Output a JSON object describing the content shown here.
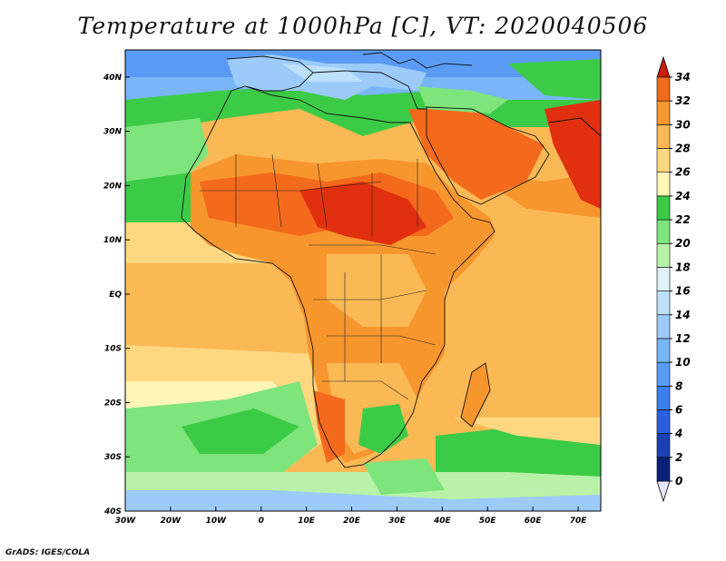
{
  "title": "Temperature at 1000hPa [C], VT: 2020040506",
  "footer": "GrADS: IGES/COLA",
  "map": {
    "lon_range": [
      -30,
      75
    ],
    "lat_range": [
      -40,
      45
    ],
    "lon_ticks": [
      {
        "value": -30,
        "label": "30W"
      },
      {
        "value": -20,
        "label": "20W"
      },
      {
        "value": -10,
        "label": "10W"
      },
      {
        "value": 0,
        "label": "0"
      },
      {
        "value": 10,
        "label": "10E"
      },
      {
        "value": 20,
        "label": "20E"
      },
      {
        "value": 30,
        "label": "30E"
      },
      {
        "value": 40,
        "label": "40E"
      },
      {
        "value": 50,
        "label": "50E"
      },
      {
        "value": 60,
        "label": "60E"
      },
      {
        "value": 70,
        "label": "70E"
      }
    ],
    "lat_ticks": [
      {
        "value": 40,
        "label": "40N"
      },
      {
        "value": 30,
        "label": "30N"
      },
      {
        "value": 20,
        "label": "20N"
      },
      {
        "value": 10,
        "label": "10N"
      },
      {
        "value": 0,
        "label": "EQ"
      },
      {
        "value": -10,
        "label": "10S"
      },
      {
        "value": -20,
        "label": "20S"
      },
      {
        "value": -30,
        "label": "30S"
      },
      {
        "value": -40,
        "label": "40S"
      }
    ]
  },
  "colorbar": {
    "levels": [
      {
        "label": "0",
        "color": "#0a1f78"
      },
      {
        "label": "2",
        "color": "#1b3fb4"
      },
      {
        "label": "4",
        "color": "#2a60e0"
      },
      {
        "label": "6",
        "color": "#3b7ef0"
      },
      {
        "label": "8",
        "color": "#5a9cf5"
      },
      {
        "label": "10",
        "color": "#78b6f8"
      },
      {
        "label": "12",
        "color": "#9ccbfa"
      },
      {
        "label": "14",
        "color": "#bde0fb"
      },
      {
        "label": "16",
        "color": "#dff3f6"
      },
      {
        "label": "18",
        "color": "#b8f2a8"
      },
      {
        "label": "20",
        "color": "#7ee47c"
      },
      {
        "label": "22",
        "color": "#3ccb47"
      },
      {
        "label": "24",
        "color": "#fff5b4"
      },
      {
        "label": "26",
        "color": "#fdd880"
      },
      {
        "label": "28",
        "color": "#fbb955"
      },
      {
        "label": "30",
        "color": "#f8962e"
      },
      {
        "label": "32",
        "color": "#f46a1c"
      },
      {
        "label": "34",
        "color": "#e0300f"
      }
    ],
    "below_color": "#e6e6ff",
    "above_color": "#c81e0a"
  }
}
